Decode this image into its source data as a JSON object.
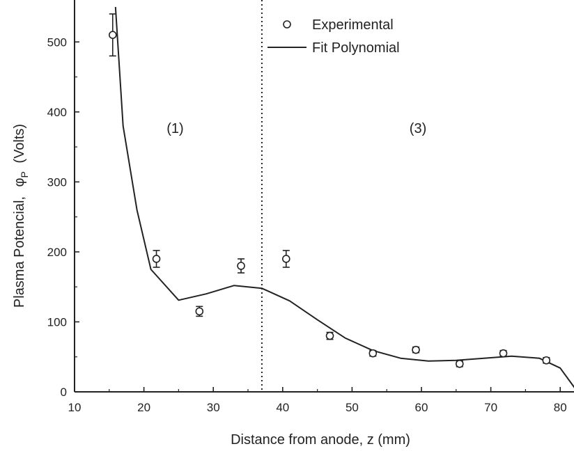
{
  "chart_data": {
    "type": "scatter",
    "xlabel": "Distance from anode, z (mm)",
    "ylabel": {
      "main": "Plasma Potencial,",
      "symbol": "φ",
      "subscript": "P",
      "unit": "(Volts)"
    },
    "xlim": [
      10,
      84
    ],
    "ylim": [
      0,
      550
    ],
    "xticks": [
      10,
      20,
      30,
      40,
      50,
      60,
      70,
      80
    ],
    "yticks": [
      0,
      100,
      200,
      300,
      400,
      500
    ],
    "grid": false,
    "legend_position": "top-center",
    "series": [
      {
        "name": "Experimental",
        "kind": "scatter-errorbar",
        "marker": "open-circle",
        "points": [
          {
            "x": 15.5,
            "y": 510,
            "err": 30
          },
          {
            "x": 21.8,
            "y": 190,
            "err": 12
          },
          {
            "x": 28.0,
            "y": 115,
            "err": 7
          },
          {
            "x": 34.0,
            "y": 180,
            "err": 10
          },
          {
            "x": 40.5,
            "y": 190,
            "err": 12
          },
          {
            "x": 46.8,
            "y": 80,
            "err": 5
          },
          {
            "x": 53.0,
            "y": 55,
            "err": 4
          },
          {
            "x": 59.2,
            "y": 60,
            "err": 4
          },
          {
            "x": 65.5,
            "y": 40,
            "err": 4
          },
          {
            "x": 71.8,
            "y": 55,
            "err": 4
          },
          {
            "x": 78.0,
            "y": 45,
            "err": 4
          }
        ]
      },
      {
        "name": "Fit Polynomial",
        "kind": "line",
        "x": [
          15.9,
          17.0,
          19.0,
          21.0,
          25.0,
          29.0,
          33.0,
          37.0,
          41.0,
          45.0,
          49.0,
          53.0,
          57.0,
          61.0,
          65.0,
          69.0,
          73.0,
          77.0,
          80.0,
          82.5
        ],
        "y": [
          550,
          380,
          260,
          175,
          131,
          140,
          152,
          148,
          130,
          103,
          77,
          59,
          48,
          44,
          45,
          48,
          51,
          48,
          34,
          0
        ]
      }
    ],
    "divider_x": 37,
    "region_labels": [
      {
        "text": "(1)",
        "x": 24.5,
        "y": 370
      },
      {
        "text": "(3)",
        "x": 59.5,
        "y": 370
      }
    ],
    "colors": {
      "line": "#222222",
      "axis": "#222222",
      "marker": "#222222"
    }
  }
}
